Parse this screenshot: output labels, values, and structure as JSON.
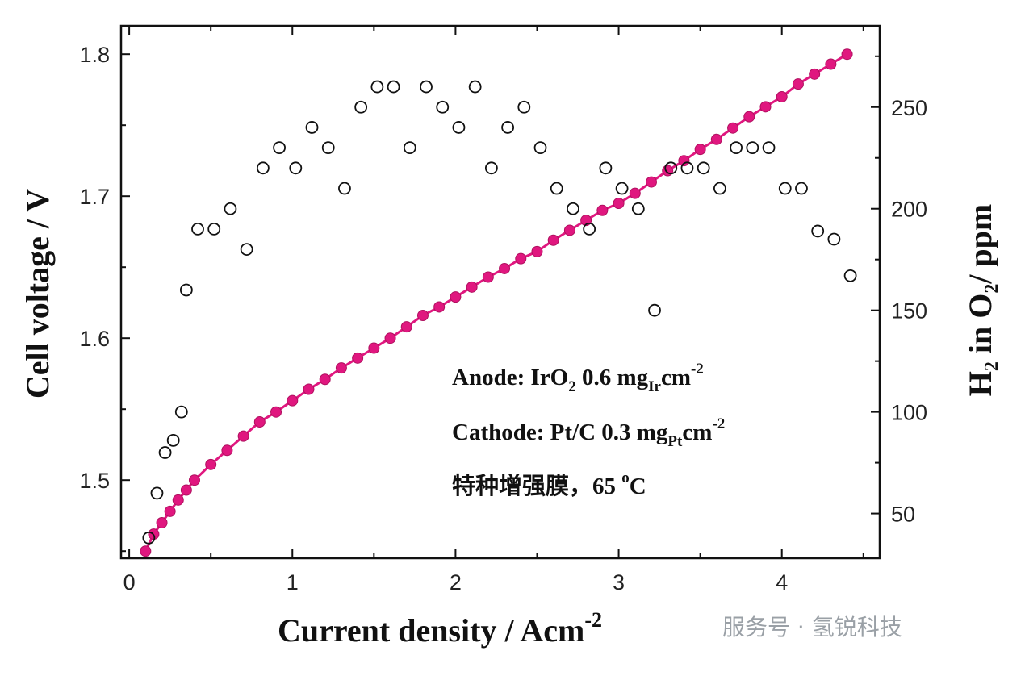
{
  "chart_data": {
    "type": "scatter",
    "xlabel": "Current density / Acm",
    "xlabel_sup": "-2",
    "ylabel": "Cell voltage / V",
    "y2label": "H₂ in O₂/ ppm",
    "xlim": [
      -0.05,
      4.6
    ],
    "ylim": [
      1.445,
      1.82
    ],
    "y2lim": [
      28,
      290
    ],
    "grid": false,
    "x_ticks": [
      0,
      1,
      2,
      3,
      4
    ],
    "x_minor_ticks": [
      0.5,
      1.5,
      2.5,
      3.5,
      4.5
    ],
    "y_ticks": [
      1.5,
      1.6,
      1.7,
      1.8
    ],
    "y_minor_ticks": [
      1.45,
      1.55,
      1.65,
      1.75
    ],
    "y2_ticks": [
      50,
      100,
      150,
      200,
      250
    ],
    "y2_minor_ticks": [
      75,
      125,
      175,
      225,
      275
    ],
    "series": [
      {
        "name": "",
        "axis": "left",
        "style": "line-filled-markers",
        "color": "#e0177f",
        "x": [
          0.1,
          0.15,
          0.2,
          0.25,
          0.3,
          0.35,
          0.4,
          0.5,
          0.6,
          0.7,
          0.8,
          0.9,
          1.0,
          1.1,
          1.2,
          1.3,
          1.4,
          1.5,
          1.6,
          1.7,
          1.8,
          1.9,
          2.0,
          2.1,
          2.2,
          2.3,
          2.4,
          2.5,
          2.6,
          2.7,
          2.8,
          2.9,
          3.0,
          3.1,
          3.2,
          3.3,
          3.4,
          3.5,
          3.6,
          3.7,
          3.8,
          3.9,
          4.0,
          4.1,
          4.2,
          4.3,
          4.4
        ],
        "y": [
          1.45,
          1.462,
          1.47,
          1.478,
          1.486,
          1.493,
          1.5,
          1.511,
          1.521,
          1.531,
          1.541,
          1.548,
          1.556,
          1.564,
          1.571,
          1.579,
          1.586,
          1.593,
          1.6,
          1.608,
          1.616,
          1.622,
          1.629,
          1.636,
          1.643,
          1.649,
          1.656,
          1.661,
          1.669,
          1.676,
          1.683,
          1.69,
          1.695,
          1.702,
          1.71,
          1.718,
          1.725,
          1.733,
          1.74,
          1.748,
          1.756,
          1.763,
          1.77,
          1.779,
          1.786,
          1.793,
          1.8
        ]
      },
      {
        "name": "",
        "axis": "right",
        "style": "open-circles",
        "color": "#111111",
        "x": [
          0.12,
          0.17,
          0.22,
          0.27,
          0.32,
          0.35,
          0.42,
          0.52,
          0.62,
          0.72,
          0.82,
          0.92,
          1.02,
          1.12,
          1.22,
          1.32,
          1.42,
          1.52,
          1.62,
          1.72,
          1.82,
          1.92,
          2.02,
          2.12,
          2.22,
          2.32,
          2.42,
          2.52,
          2.62,
          2.72,
          2.82,
          2.92,
          3.02,
          3.12,
          3.22,
          3.32,
          3.42,
          3.52,
          3.62,
          3.72,
          3.82,
          3.92,
          4.02,
          4.12,
          4.22,
          4.32,
          4.42
        ],
        "y": [
          38,
          60,
          80,
          86,
          100,
          160,
          190,
          190,
          200,
          180,
          220,
          230,
          220,
          240,
          230,
          210,
          250,
          260,
          260,
          230,
          260,
          250,
          240,
          260,
          220,
          240,
          250,
          230,
          210,
          200,
          190,
          220,
          210,
          200,
          150,
          220,
          220,
          220,
          210,
          230,
          230,
          230,
          210,
          210,
          189,
          185,
          167
        ]
      }
    ],
    "annotations": [
      {
        "pre": "Anode: IrO",
        "sub1": "2",
        "mid": " 0.6 mg",
        "sub2": "Ir",
        "post": "cm",
        "sup": "-2"
      },
      {
        "pre": "Cathode: Pt/C 0.3 mg",
        "sub2": "Pt",
        "post": "cm",
        "sup": "-2"
      },
      {
        "pre": "特种增强膜，65 ",
        "sup": "o",
        "post": "C"
      }
    ]
  },
  "watermark": "服务号 · 氢锐科技",
  "colors": {
    "line": "#e0177f",
    "axes": "#111111"
  }
}
